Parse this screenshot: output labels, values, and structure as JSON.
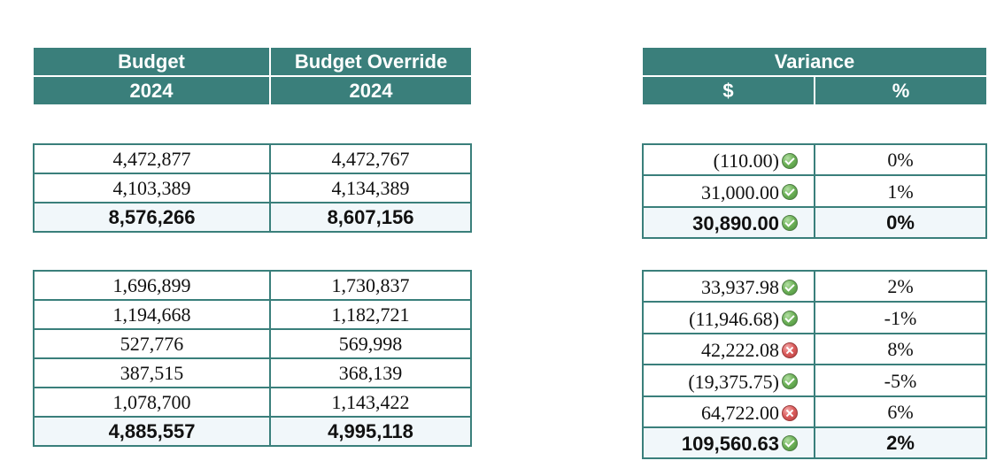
{
  "headers": {
    "budget_label": "Budget",
    "budget_year": "2024",
    "override_label": "Budget Override",
    "override_year": "2024",
    "variance_label": "Variance",
    "variance_dollar": "$",
    "variance_pct": "%"
  },
  "groups": [
    {
      "rows": [
        {
          "budget": "4,472,877",
          "override": "4,472,767",
          "variance": "(110.00)",
          "status": "ok",
          "pct": "0%"
        },
        {
          "budget": "4,103,389",
          "override": "4,134,389",
          "variance": "31,000.00",
          "status": "ok",
          "pct": "1%"
        }
      ],
      "total": {
        "budget": "8,576,266",
        "override": "8,607,156",
        "variance": "30,890.00",
        "status": "ok",
        "pct": "0%"
      }
    },
    {
      "rows": [
        {
          "budget": "1,696,899",
          "override": "1,730,837",
          "variance": "33,937.98",
          "status": "ok",
          "pct": "2%"
        },
        {
          "budget": "1,194,668",
          "override": "1,182,721",
          "variance": "(11,946.68)",
          "status": "ok",
          "pct": "-1%"
        },
        {
          "budget": "527,776",
          "override": "569,998",
          "variance": "42,222.08",
          "status": "bad",
          "pct": "8%"
        },
        {
          "budget": "387,515",
          "override": "368,139",
          "variance": "(19,375.75)",
          "status": "ok",
          "pct": "-5%"
        },
        {
          "budget": "1,078,700",
          "override": "1,143,422",
          "variance": "64,722.00",
          "status": "bad",
          "pct": "6%"
        }
      ],
      "total": {
        "budget": "4,885,557",
        "override": "4,995,118",
        "variance": "109,560.63",
        "status": "ok",
        "pct": "2%"
      }
    }
  ],
  "colors": {
    "header_bg": "#3a7f7b",
    "total_row_bg": "#f1f7fa",
    "ok_icon": "#6fb35a",
    "bad_icon": "#dd5f5f"
  },
  "icons": {
    "ok": "check-circle-icon",
    "bad": "x-circle-icon"
  }
}
